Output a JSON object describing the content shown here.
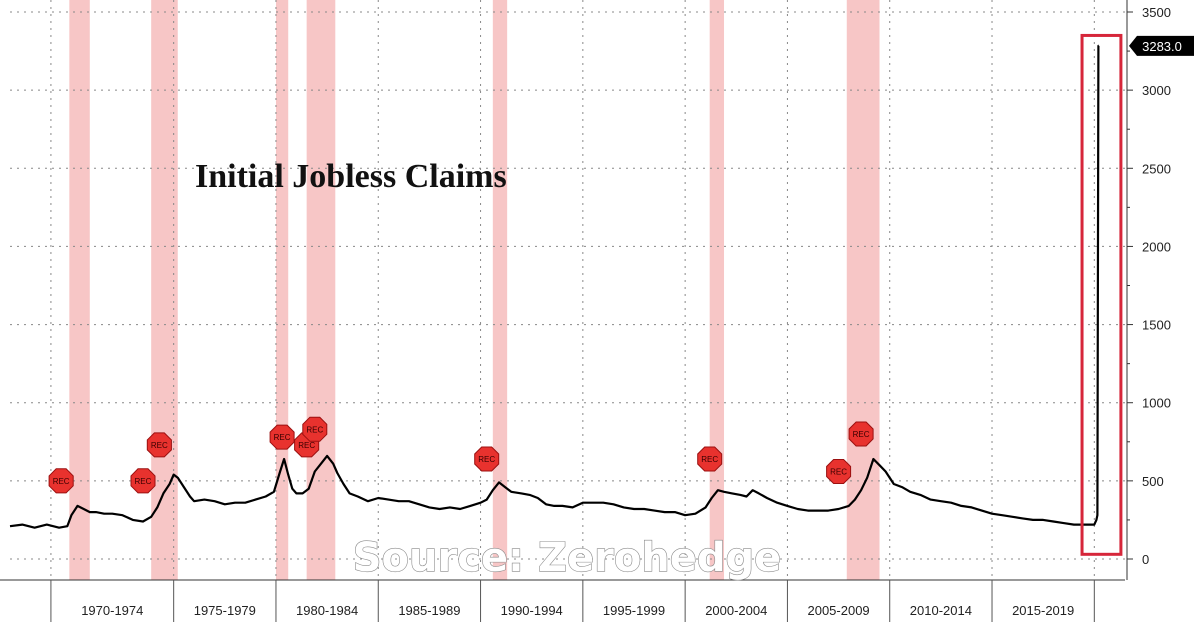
{
  "chart_data": {
    "type": "line",
    "title": "Initial Jobless Claims",
    "source": "Source: Zerohedge",
    "ylim": [
      -80,
      3550
    ],
    "yticks": [
      0,
      500,
      1000,
      1500,
      2000,
      2500,
      3000,
      3500
    ],
    "ytick_labels": [
      "0",
      "500",
      "1000",
      "1500",
      "2000",
      "2500",
      "3000",
      "3500"
    ],
    "xlim": [
      1967.0,
      2021.5
    ],
    "period_labels": [
      "1970-1974",
      "1975-1979",
      "1980-1984",
      "1985-1989",
      "1990-1994",
      "1995-1999",
      "2000-2004",
      "2005-2009",
      "2010-2014",
      "2015-2019"
    ],
    "period_boundaries": [
      1969.0,
      1975.0,
      1980.0,
      1985.0,
      1990.0,
      1995.0,
      2000.0,
      2005.0,
      2010.0,
      2015.0,
      2020.0
    ],
    "last_value": 3283.0,
    "last_value_label": "3283.0",
    "grid": true,
    "series": [
      {
        "color": "#000000",
        "x": [
          1967.0,
          1967.6,
          1968.2,
          1968.8,
          1969.4,
          1969.8,
          1970.0,
          1970.3,
          1970.6,
          1970.9,
          1971.2,
          1971.6,
          1972.0,
          1972.5,
          1973.0,
          1973.5,
          1973.9,
          1974.2,
          1974.5,
          1974.8,
          1975.0,
          1975.2,
          1975.5,
          1975.8,
          1976.0,
          1976.5,
          1977.0,
          1977.5,
          1978.0,
          1978.5,
          1979.0,
          1979.5,
          1979.9,
          1980.2,
          1980.4,
          1980.6,
          1980.8,
          1981.0,
          1981.3,
          1981.6,
          1981.9,
          1982.2,
          1982.5,
          1982.8,
          1983.0,
          1983.3,
          1983.6,
          1984.0,
          1984.5,
          1985.0,
          1985.5,
          1986.0,
          1986.5,
          1987.0,
          1987.5,
          1988.0,
          1988.5,
          1989.0,
          1989.5,
          1990.0,
          1990.3,
          1990.6,
          1990.9,
          1991.2,
          1991.5,
          1992.0,
          1992.4,
          1992.8,
          1993.2,
          1993.6,
          1994.0,
          1994.5,
          1995.0,
          1995.5,
          1996.0,
          1996.5,
          1997.0,
          1997.5,
          1998.0,
          1998.5,
          1999.0,
          1999.5,
          2000.0,
          2000.5,
          2001.0,
          2001.3,
          2001.6,
          2001.9,
          2002.3,
          2002.7,
          2003.0,
          2003.3,
          2003.6,
          2004.0,
          2004.5,
          2005.0,
          2005.5,
          2006.0,
          2006.5,
          2007.0,
          2007.5,
          2008.0,
          2008.3,
          2008.6,
          2008.9,
          2009.2,
          2009.5,
          2009.8,
          2010.2,
          2010.6,
          2011.0,
          2011.5,
          2012.0,
          2012.5,
          2013.0,
          2013.5,
          2014.0,
          2014.5,
          2015.0,
          2015.5,
          2016.0,
          2016.5,
          2017.0,
          2017.5,
          2018.0,
          2018.5,
          2019.0,
          2019.5,
          2020.0,
          2020.1,
          2020.15,
          2020.2,
          2020.22
        ],
        "y": [
          210,
          220,
          200,
          220,
          200,
          210,
          280,
          340,
          320,
          300,
          300,
          290,
          290,
          280,
          250,
          240,
          270,
          330,
          420,
          480,
          540,
          520,
          460,
          400,
          370,
          380,
          370,
          350,
          360,
          360,
          380,
          400,
          430,
          560,
          640,
          540,
          450,
          420,
          420,
          450,
          560,
          610,
          660,
          610,
          550,
          480,
          420,
          400,
          370,
          390,
          380,
          370,
          370,
          350,
          330,
          320,
          330,
          320,
          340,
          360,
          380,
          440,
          490,
          460,
          430,
          420,
          410,
          390,
          350,
          340,
          340,
          330,
          360,
          360,
          360,
          350,
          330,
          320,
          320,
          310,
          300,
          300,
          280,
          290,
          330,
          390,
          440,
          430,
          420,
          410,
          400,
          440,
          420,
          390,
          360,
          340,
          320,
          310,
          310,
          310,
          320,
          340,
          380,
          440,
          520,
          640,
          600,
          560,
          480,
          460,
          430,
          410,
          380,
          370,
          360,
          340,
          330,
          310,
          290,
          280,
          270,
          260,
          250,
          250,
          240,
          230,
          220,
          220,
          220,
          250,
          280,
          3283,
          3283
        ]
      }
    ],
    "recession_bands": [
      {
        "start": 1969.9,
        "end": 1970.9
      },
      {
        "start": 1973.9,
        "end": 1975.2
      },
      {
        "start": 1980.0,
        "end": 1980.6
      },
      {
        "start": 1981.5,
        "end": 1982.9
      },
      {
        "start": 1990.6,
        "end": 1991.3
      },
      {
        "start": 2001.2,
        "end": 2001.9
      },
      {
        "start": 2007.9,
        "end": 2009.5
      }
    ],
    "rec_markers": [
      {
        "label": "REC",
        "x": 1969.5,
        "y": 500
      },
      {
        "label": "REC",
        "x": 1973.5,
        "y": 500
      },
      {
        "label": "REC",
        "x": 1974.3,
        "y": 730
      },
      {
        "label": "REC",
        "x": 1980.3,
        "y": 780
      },
      {
        "label": "REC",
        "x": 1981.5,
        "y": 730
      },
      {
        "label": "REC",
        "x": 1981.9,
        "y": 830
      },
      {
        "label": "REC",
        "x": 1990.3,
        "y": 640
      },
      {
        "label": "REC",
        "x": 2001.2,
        "y": 640
      },
      {
        "label": "REC",
        "x": 2007.5,
        "y": 560
      },
      {
        "label": "REC",
        "x": 2008.6,
        "y": 800
      }
    ],
    "highlight_box": {
      "x_start": 2019.4,
      "x_end": 2021.3,
      "y_start": 30,
      "y_end": 3350
    },
    "colors": {
      "line": "#000000",
      "recession_band": "#f7c6c6",
      "rec_marker": "#e8322e",
      "highlight_box": "#d6263a",
      "last_value_box": "#000000",
      "grid": "#888888"
    }
  }
}
